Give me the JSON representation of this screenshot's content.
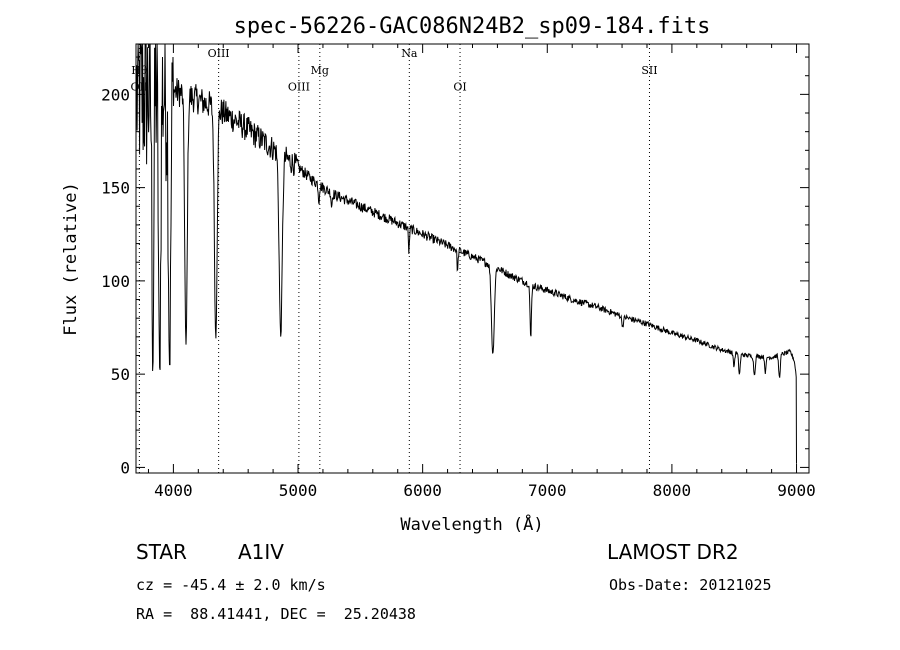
{
  "chart_data": {
    "type": "line",
    "title": "spec-56226-GAC086N24B2_sp09-184.fits",
    "xlabel": "Wavelength (Å)",
    "ylabel": "Flux (relative)",
    "xlim": [
      3700,
      9100
    ],
    "ylim": [
      -3,
      227
    ],
    "xticks": [
      4000,
      5000,
      6000,
      7000,
      8000,
      9000
    ],
    "yticks": [
      0,
      50,
      100,
      150,
      200
    ],
    "grid": false,
    "continuum": [
      [
        3700,
        200
      ],
      [
        3800,
        202
      ],
      [
        3900,
        203
      ],
      [
        4000,
        202
      ],
      [
        4100,
        200
      ],
      [
        4200,
        197
      ],
      [
        4300,
        194
      ],
      [
        4400,
        190
      ],
      [
        4500,
        186
      ],
      [
        4600,
        181
      ],
      [
        4700,
        176
      ],
      [
        4800,
        171
      ],
      [
        4900,
        166
      ],
      [
        5000,
        161
      ],
      [
        5100,
        155
      ],
      [
        5200,
        150
      ],
      [
        5300,
        146
      ],
      [
        5400,
        143
      ],
      [
        5500,
        140
      ],
      [
        5600,
        137
      ],
      [
        5700,
        134
      ],
      [
        5800,
        131
      ],
      [
        5900,
        128
      ],
      [
        6000,
        125
      ],
      [
        6100,
        122
      ],
      [
        6200,
        119
      ],
      [
        6300,
        116
      ],
      [
        6400,
        113
      ],
      [
        6500,
        110
      ],
      [
        6600,
        107
      ],
      [
        6700,
        103
      ],
      [
        6800,
        100
      ],
      [
        6900,
        97
      ],
      [
        7000,
        95
      ],
      [
        7200,
        90
      ],
      [
        7400,
        86
      ],
      [
        7600,
        81
      ],
      [
        7800,
        77
      ],
      [
        8000,
        72
      ],
      [
        8200,
        68
      ],
      [
        8400,
        63
      ],
      [
        8600,
        60
      ],
      [
        8800,
        59
      ],
      [
        8950,
        62
      ],
      [
        9000,
        55
      ]
    ],
    "absorption_lines": [
      {
        "wavelength": 3835,
        "depth": 0.72,
        "width": 10
      },
      {
        "wavelength": 3889,
        "depth": 0.76,
        "width": 12
      },
      {
        "wavelength": 3970,
        "depth": 0.72,
        "width": 13
      },
      {
        "wavelength": 4101,
        "depth": 0.68,
        "width": 14
      },
      {
        "wavelength": 4340,
        "depth": 0.64,
        "width": 15
      },
      {
        "wavelength": 4861,
        "depth": 0.58,
        "width": 17
      },
      {
        "wavelength": 5167,
        "depth": 0.06,
        "width": 6
      },
      {
        "wavelength": 5270,
        "depth": 0.05,
        "width": 6
      },
      {
        "wavelength": 5890,
        "depth": 0.1,
        "width": 6
      },
      {
        "wavelength": 6280,
        "depth": 0.1,
        "width": 6
      },
      {
        "wavelength": 6563,
        "depth": 0.44,
        "width": 16
      },
      {
        "wavelength": 6867,
        "depth": 0.3,
        "width": 8
      },
      {
        "wavelength": 7605,
        "depth": 0.06,
        "width": 10
      },
      {
        "wavelength": 8498,
        "depth": 0.12,
        "width": 8
      },
      {
        "wavelength": 8542,
        "depth": 0.18,
        "width": 9
      },
      {
        "wavelength": 8662,
        "depth": 0.17,
        "width": 9
      },
      {
        "wavelength": 8750,
        "depth": 0.14,
        "width": 8
      },
      {
        "wavelength": 8863,
        "depth": 0.2,
        "width": 9
      },
      {
        "wavelength": 9000,
        "depth": 0.12,
        "width": 12
      }
    ],
    "line_markers": [
      {
        "label": "Hθ",
        "wavelength": 3727,
        "label_flux": 211
      },
      {
        "label": "OII",
        "wavelength": 3727,
        "label_flux": 202
      },
      {
        "label": "OIII",
        "wavelength": 4363,
        "label_flux": 220
      },
      {
        "label": "OIII",
        "wavelength": 5007,
        "label_flux": 202
      },
      {
        "label": "Mg",
        "wavelength": 5175,
        "label_flux": 211
      },
      {
        "label": "Na",
        "wavelength": 5893,
        "label_flux": 220
      },
      {
        "label": "OI",
        "wavelength": 6300,
        "label_flux": 202
      },
      {
        "label": "SII",
        "wavelength": 7820,
        "label_flux": 211
      }
    ]
  },
  "info": {
    "object_class": "STAR",
    "subclass": "A1IV",
    "survey": "LAMOST DR2",
    "redshift": "cz = -45.4 ± 2.0 km/s",
    "obs_date": "Obs-Date: 20121025",
    "coords": "RA =  88.41441, DEC =  25.20438"
  }
}
